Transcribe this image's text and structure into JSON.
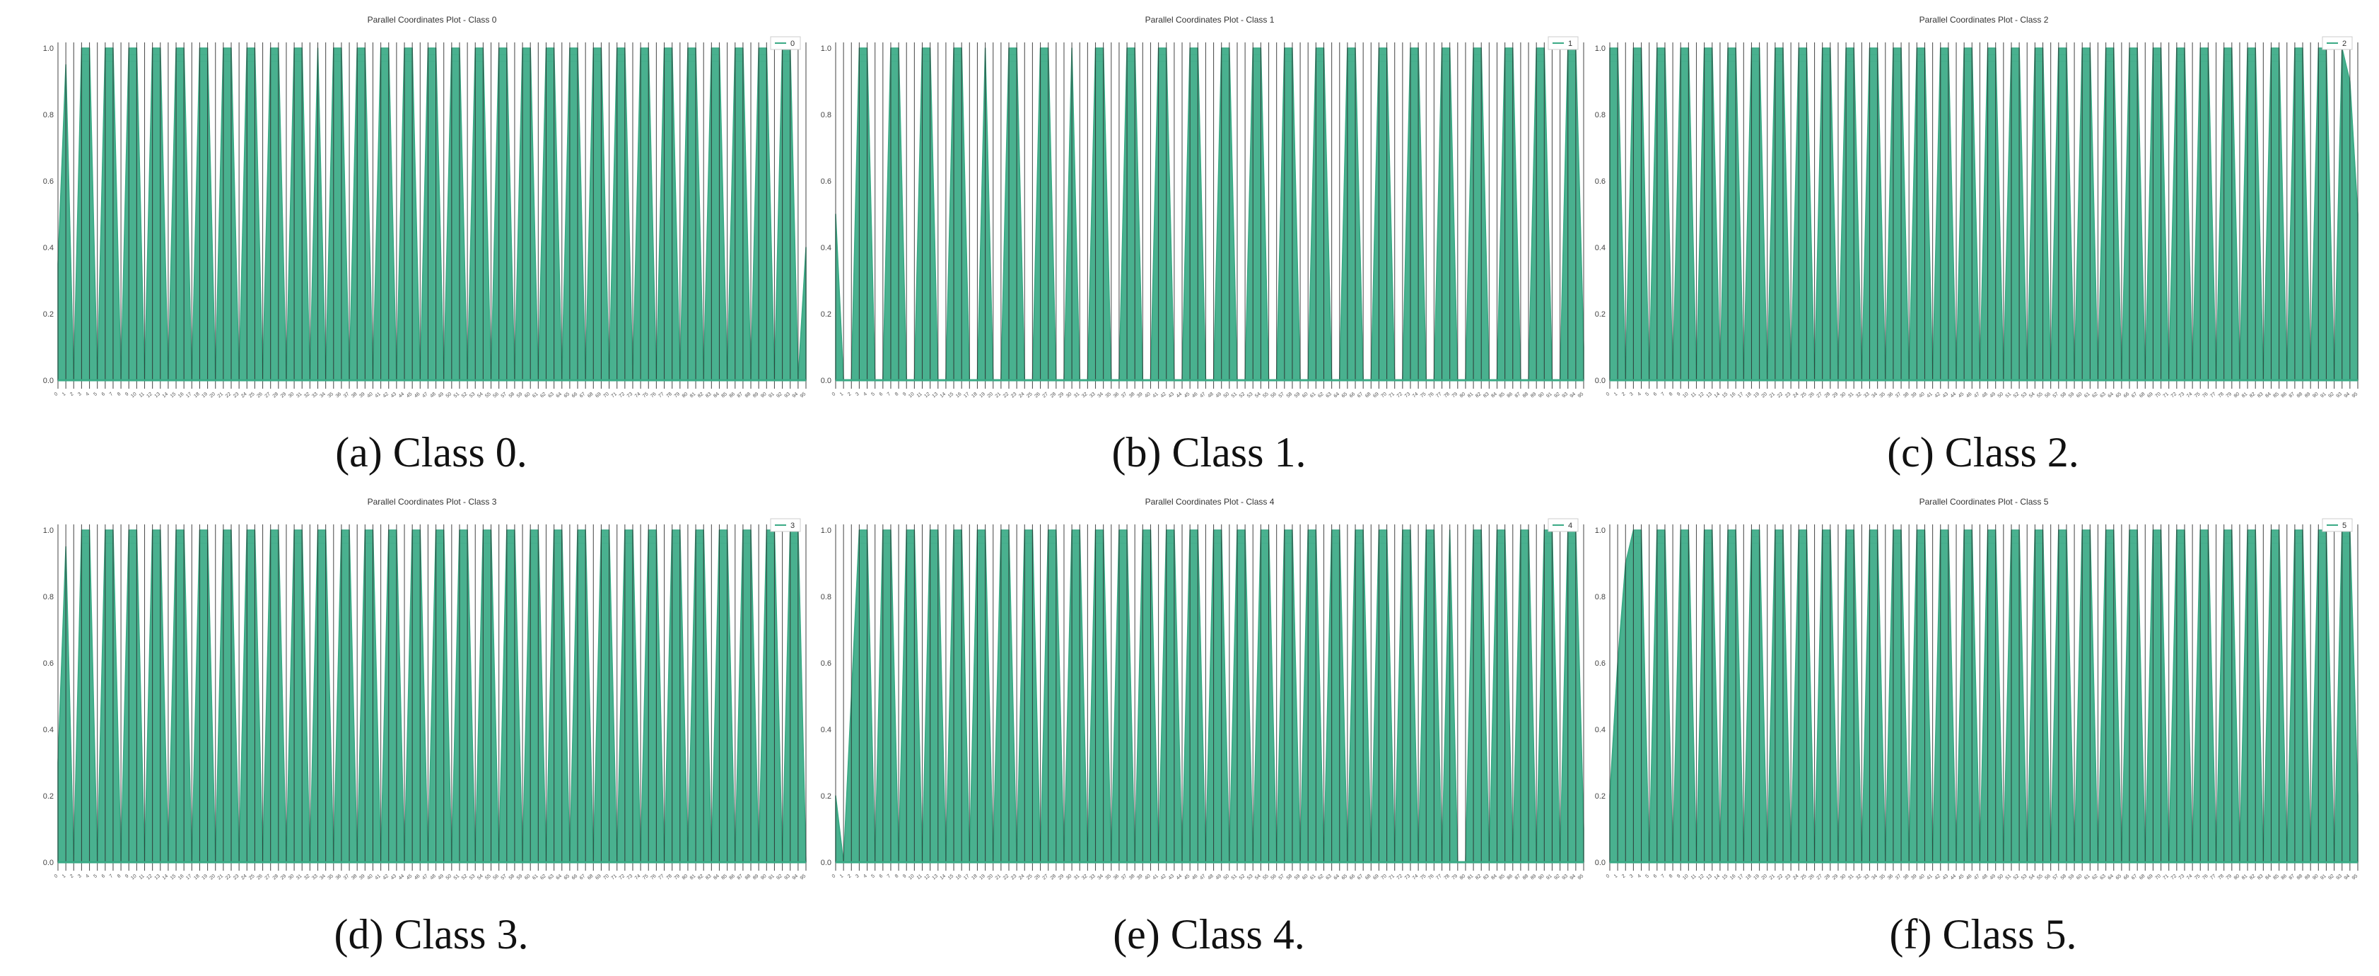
{
  "colors": {
    "line": "#3aaa85",
    "axis": "#2a2a2a",
    "panel_bg": "#ffffff"
  },
  "chart_data": [
    {
      "type": "parallel-coordinates",
      "title": "Parallel Coordinates Plot - Class 0",
      "caption": "(a) Class 0.",
      "legend": "0",
      "legend_position": "top-right",
      "ylim": [
        0.0,
        1.0
      ],
      "yticks": [
        "0.0",
        "0.2",
        "0.4",
        "0.6",
        "0.8",
        "1.0"
      ],
      "n_axes": 96,
      "profile": [
        0.35,
        0.95,
        0.0,
        1.0,
        1.0,
        0.0,
        1.0,
        1.0,
        0.0,
        1.0,
        1.0,
        0.0,
        1.0,
        1.0,
        0.0,
        1.0,
        1.0,
        0.0,
        1.0,
        1.0,
        0.0,
        1.0,
        1.0,
        0.0,
        1.0,
        1.0,
        0.0,
        1.0,
        1.0,
        0.0,
        1.0,
        1.0,
        0.0,
        1.0,
        0.0,
        1.0,
        1.0,
        0.0,
        1.0,
        1.0,
        0.0,
        1.0,
        1.0,
        0.0,
        1.0,
        1.0,
        0.0,
        1.0,
        1.0,
        0.0,
        1.0,
        1.0,
        0.0,
        1.0,
        1.0,
        0.0,
        1.0,
        1.0,
        0.0,
        1.0,
        1.0,
        0.0,
        1.0,
        1.0,
        0.0,
        1.0,
        1.0,
        0.0,
        1.0,
        1.0,
        0.0,
        1.0,
        1.0,
        0.0,
        1.0,
        1.0,
        0.0,
        1.0,
        1.0,
        0.0,
        1.0,
        1.0,
        0.0,
        1.0,
        1.0,
        0.0,
        1.0,
        1.0,
        0.0,
        1.0,
        1.0,
        0.0,
        1.0,
        1.0,
        0.0,
        0.4
      ]
    },
    {
      "type": "parallel-coordinates",
      "title": "Parallel Coordinates Plot - Class 1",
      "caption": "(b) Class 1.",
      "legend": "1",
      "legend_position": "top-right",
      "ylim": [
        0.0,
        1.0
      ],
      "yticks": [
        "0.0",
        "0.2",
        "0.4",
        "0.6",
        "0.8",
        "1.0"
      ],
      "n_axes": 96,
      "profile": [
        0.5,
        0.0,
        0.0,
        1.0,
        1.0,
        0.0,
        0.0,
        1.0,
        1.0,
        0.0,
        0.0,
        1.0,
        1.0,
        0.0,
        0.0,
        1.0,
        1.0,
        0.0,
        0.0,
        1.0,
        0.0,
        0.0,
        1.0,
        1.0,
        0.0,
        0.0,
        1.0,
        1.0,
        0.0,
        0.0,
        1.0,
        0.0,
        0.0,
        1.0,
        1.0,
        0.0,
        0.0,
        1.0,
        1.0,
        0.0,
        0.0,
        1.0,
        1.0,
        0.0,
        0.0,
        1.0,
        1.0,
        0.0,
        0.0,
        1.0,
        1.0,
        0.0,
        0.0,
        1.0,
        1.0,
        0.0,
        0.0,
        1.0,
        1.0,
        0.0,
        0.0,
        1.0,
        1.0,
        0.0,
        0.0,
        1.0,
        1.0,
        0.0,
        0.0,
        1.0,
        1.0,
        0.0,
        0.0,
        1.0,
        1.0,
        0.0,
        0.0,
        1.0,
        1.0,
        0.0,
        0.0,
        1.0,
        1.0,
        0.0,
        0.0,
        1.0,
        1.0,
        0.0,
        0.0,
        1.0,
        1.0,
        0.0,
        0.0,
        1.0,
        1.0,
        0.1
      ]
    },
    {
      "type": "parallel-coordinates",
      "title": "Parallel Coordinates Plot - Class 2",
      "caption": "(c) Class 2.",
      "legend": "2",
      "legend_position": "top-right",
      "ylim": [
        0.0,
        1.0
      ],
      "yticks": [
        "0.0",
        "0.2",
        "0.4",
        "0.6",
        "0.8",
        "1.0"
      ],
      "n_axes": 96,
      "profile": [
        1.0,
        1.0,
        0.0,
        1.0,
        1.0,
        0.0,
        1.0,
        1.0,
        0.0,
        1.0,
        1.0,
        0.0,
        1.0,
        1.0,
        0.0,
        1.0,
        1.0,
        0.0,
        1.0,
        1.0,
        0.0,
        1.0,
        1.0,
        0.0,
        1.0,
        1.0,
        0.0,
        1.0,
        1.0,
        0.0,
        1.0,
        1.0,
        0.0,
        1.0,
        1.0,
        0.0,
        1.0,
        1.0,
        0.0,
        1.0,
        1.0,
        0.0,
        1.0,
        1.0,
        0.0,
        1.0,
        1.0,
        0.0,
        1.0,
        1.0,
        0.0,
        1.0,
        1.0,
        0.0,
        1.0,
        1.0,
        0.0,
        1.0,
        1.0,
        0.0,
        1.0,
        1.0,
        0.0,
        1.0,
        1.0,
        0.0,
        1.0,
        1.0,
        0.0,
        1.0,
        1.0,
        0.0,
        1.0,
        1.0,
        0.0,
        1.0,
        1.0,
        0.0,
        1.0,
        1.0,
        0.0,
        1.0,
        1.0,
        0.0,
        1.0,
        1.0,
        0.0,
        1.0,
        1.0,
        0.0,
        1.0,
        1.0,
        0.0,
        1.0,
        0.9,
        0.5
      ]
    },
    {
      "type": "parallel-coordinates",
      "title": "Parallel Coordinates Plot - Class 3",
      "caption": "(d) Class 3.",
      "legend": "3",
      "legend_position": "top-right",
      "ylim": [
        0.0,
        1.0
      ],
      "yticks": [
        "0.0",
        "0.2",
        "0.4",
        "0.6",
        "0.8",
        "1.0"
      ],
      "n_axes": 96,
      "profile": [
        0.3,
        0.95,
        0.0,
        1.0,
        1.0,
        0.0,
        1.0,
        1.0,
        0.0,
        1.0,
        1.0,
        0.0,
        1.0,
        1.0,
        0.0,
        1.0,
        1.0,
        0.0,
        1.0,
        1.0,
        0.0,
        1.0,
        1.0,
        0.0,
        1.0,
        1.0,
        0.0,
        1.0,
        1.0,
        0.0,
        1.0,
        1.0,
        0.0,
        1.0,
        1.0,
        0.0,
        1.0,
        1.0,
        0.0,
        1.0,
        1.0,
        0.0,
        1.0,
        1.0,
        0.0,
        1.0,
        1.0,
        0.0,
        1.0,
        1.0,
        0.0,
        1.0,
        1.0,
        0.0,
        1.0,
        1.0,
        0.0,
        1.0,
        1.0,
        0.0,
        1.0,
        1.0,
        0.0,
        1.0,
        1.0,
        0.0,
        1.0,
        1.0,
        0.0,
        1.0,
        1.0,
        0.0,
        1.0,
        1.0,
        0.0,
        1.0,
        1.0,
        0.0,
        1.0,
        1.0,
        0.0,
        1.0,
        1.0,
        0.0,
        1.0,
        1.0,
        0.0,
        1.0,
        1.0,
        0.0,
        1.0,
        1.0,
        0.0,
        1.0,
        1.0,
        0.0
      ]
    },
    {
      "type": "parallel-coordinates",
      "title": "Parallel Coordinates Plot - Class 4",
      "caption": "(e) Class 4.",
      "legend": "4",
      "legend_position": "top-right",
      "ylim": [
        0.0,
        1.0
      ],
      "yticks": [
        "0.0",
        "0.2",
        "0.4",
        "0.6",
        "0.8",
        "1.0"
      ],
      "n_axes": 96,
      "profile": [
        0.2,
        0.0,
        0.5,
        1.0,
        1.0,
        0.0,
        1.0,
        1.0,
        0.0,
        1.0,
        1.0,
        0.0,
        1.0,
        1.0,
        0.0,
        1.0,
        1.0,
        0.0,
        1.0,
        1.0,
        0.0,
        1.0,
        1.0,
        0.0,
        1.0,
        1.0,
        0.0,
        1.0,
        1.0,
        0.0,
        1.0,
        1.0,
        0.0,
        1.0,
        1.0,
        0.0,
        1.0,
        1.0,
        0.0,
        1.0,
        1.0,
        0.0,
        1.0,
        1.0,
        0.0,
        1.0,
        1.0,
        0.0,
        1.0,
        1.0,
        0.0,
        1.0,
        1.0,
        0.0,
        1.0,
        1.0,
        0.0,
        1.0,
        1.0,
        0.0,
        1.0,
        1.0,
        0.0,
        1.0,
        1.0,
        0.0,
        1.0,
        1.0,
        0.0,
        1.0,
        1.0,
        0.0,
        1.0,
        1.0,
        0.0,
        1.0,
        1.0,
        0.0,
        1.0,
        0.0,
        0.0,
        1.0,
        1.0,
        0.0,
        1.0,
        1.0,
        0.0,
        1.0,
        1.0,
        0.0,
        1.0,
        1.0,
        0.0,
        1.0,
        1.0,
        0.1
      ]
    },
    {
      "type": "parallel-coordinates",
      "title": "Parallel Coordinates Plot - Class 5",
      "caption": "(f) Class 5.",
      "legend": "5",
      "legend_position": "top-right",
      "ylim": [
        0.0,
        1.0
      ],
      "yticks": [
        "0.0",
        "0.2",
        "0.4",
        "0.6",
        "0.8",
        "1.0"
      ],
      "n_axes": 96,
      "profile": [
        0.2,
        0.6,
        0.9,
        1.0,
        1.0,
        0.0,
        1.0,
        1.0,
        0.0,
        1.0,
        1.0,
        0.0,
        1.0,
        1.0,
        0.0,
        1.0,
        1.0,
        0.0,
        1.0,
        1.0,
        0.0,
        1.0,
        1.0,
        0.0,
        1.0,
        1.0,
        0.0,
        1.0,
        1.0,
        0.0,
        1.0,
        1.0,
        0.0,
        1.0,
        1.0,
        0.0,
        1.0,
        1.0,
        0.0,
        1.0,
        1.0,
        0.0,
        1.0,
        1.0,
        0.0,
        1.0,
        1.0,
        0.0,
        1.0,
        1.0,
        0.0,
        1.0,
        1.0,
        0.0,
        1.0,
        1.0,
        0.0,
        1.0,
        1.0,
        0.0,
        1.0,
        1.0,
        0.0,
        1.0,
        1.0,
        0.0,
        1.0,
        1.0,
        0.0,
        1.0,
        1.0,
        0.0,
        1.0,
        1.0,
        0.0,
        1.0,
        1.0,
        0.0,
        1.0,
        1.0,
        0.0,
        1.0,
        1.0,
        0.0,
        1.0,
        1.0,
        0.0,
        1.0,
        1.0,
        0.0,
        1.0,
        1.0,
        0.0,
        1.0,
        1.0,
        0.2
      ]
    }
  ]
}
